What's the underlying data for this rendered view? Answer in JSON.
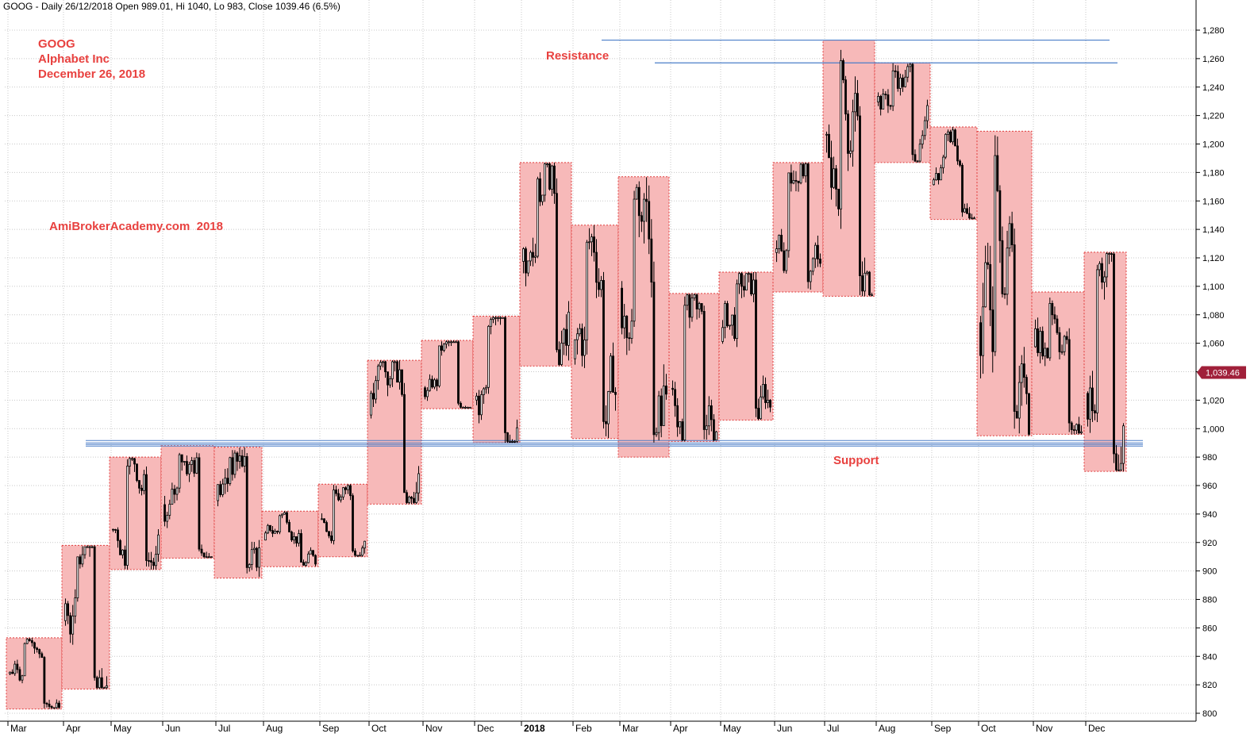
{
  "header": {
    "text": "GOOG - Daily 26/12/2018 Open 989.01, Hi 1040, Lo 983, Close 1039.46 (6.5%)"
  },
  "annotations": {
    "ticker": "GOOG",
    "company": "Alphabet Inc",
    "date": "December 26, 2018",
    "watermark": "AmiBrokerAcademy.com  2018",
    "resistance_label": "Resistance",
    "support_label": "Support"
  },
  "last_price_label": "1,039.46",
  "colors": {
    "box_fill": "#f7b9b9",
    "box_border": "#e03c3c",
    "line": "#4a7ec8",
    "candle": "#000000",
    "grid": "#c8c8c8",
    "price_tag": "#a0203a",
    "text_red": "#e8413f"
  },
  "chart_data": {
    "type": "candlestick",
    "title": "GOOG - Daily",
    "y_axis_side": "right",
    "ylim": [
      795,
      1285
    ],
    "y_ticks": [
      "800",
      "820",
      "840",
      "860",
      "880",
      "900",
      "920",
      "940",
      "960",
      "980",
      "1,000",
      "1,020",
      "1,040",
      "1,060",
      "1,080",
      "1,100",
      "1,120",
      "1,140",
      "1,160",
      "1,180",
      "1,200",
      "1,220",
      "1,240",
      "1,260",
      "1,280"
    ],
    "x_tick_labels": [
      "Mar",
      "Apr",
      "May",
      "Jun",
      "Jul",
      "Aug",
      "Sep",
      "Oct",
      "Nov",
      "Dec",
      "2018",
      "Feb",
      "Mar",
      "Apr",
      "May",
      "Jun",
      "Jul",
      "Aug",
      "Sep",
      "Oct",
      "Nov",
      "Dec"
    ],
    "monthly_ranges": [
      {
        "month": "Mar 2017",
        "high": 853,
        "low": 803
      },
      {
        "month": "Apr 2017",
        "high": 918,
        "low": 817
      },
      {
        "month": "May 2017",
        "high": 980,
        "low": 901
      },
      {
        "month": "Jun 2017",
        "high": 988,
        "low": 909
      },
      {
        "month": "Jul 2017",
        "high": 987,
        "low": 895
      },
      {
        "month": "Aug 2017",
        "high": 942,
        "low": 903
      },
      {
        "month": "Sep 2017",
        "high": 961,
        "low": 910
      },
      {
        "month": "Oct 2017",
        "high": 1048,
        "low": 947
      },
      {
        "month": "Nov 2017",
        "high": 1062,
        "low": 1014
      },
      {
        "month": "Dec 2017",
        "high": 1079,
        "low": 990
      },
      {
        "month": "Jan 2018",
        "high": 1187,
        "low": 1044
      },
      {
        "month": "Feb 2018",
        "high": 1143,
        "low": 993
      },
      {
        "month": "Mar 2018",
        "high": 1177,
        "low": 980
      },
      {
        "month": "Apr 2018",
        "high": 1095,
        "low": 991
      },
      {
        "month": "May 2018",
        "high": 1110,
        "low": 1006
      },
      {
        "month": "Jun 2018",
        "high": 1187,
        "low": 1096
      },
      {
        "month": "Jul 2018",
        "high": 1273,
        "low": 1093
      },
      {
        "month": "Aug 2018",
        "high": 1257,
        "low": 1187
      },
      {
        "month": "Sep 2018",
        "high": 1212,
        "low": 1147
      },
      {
        "month": "Oct 2018",
        "high": 1209,
        "low": 995
      },
      {
        "month": "Nov 2018",
        "high": 1096,
        "low": 996
      },
      {
        "month": "Dec 2018",
        "high": 1124,
        "low": 970
      }
    ],
    "resistance_levels": [
      1273,
      1257
    ],
    "support_level": 990,
    "last_close": 1039.46,
    "grid": true
  }
}
